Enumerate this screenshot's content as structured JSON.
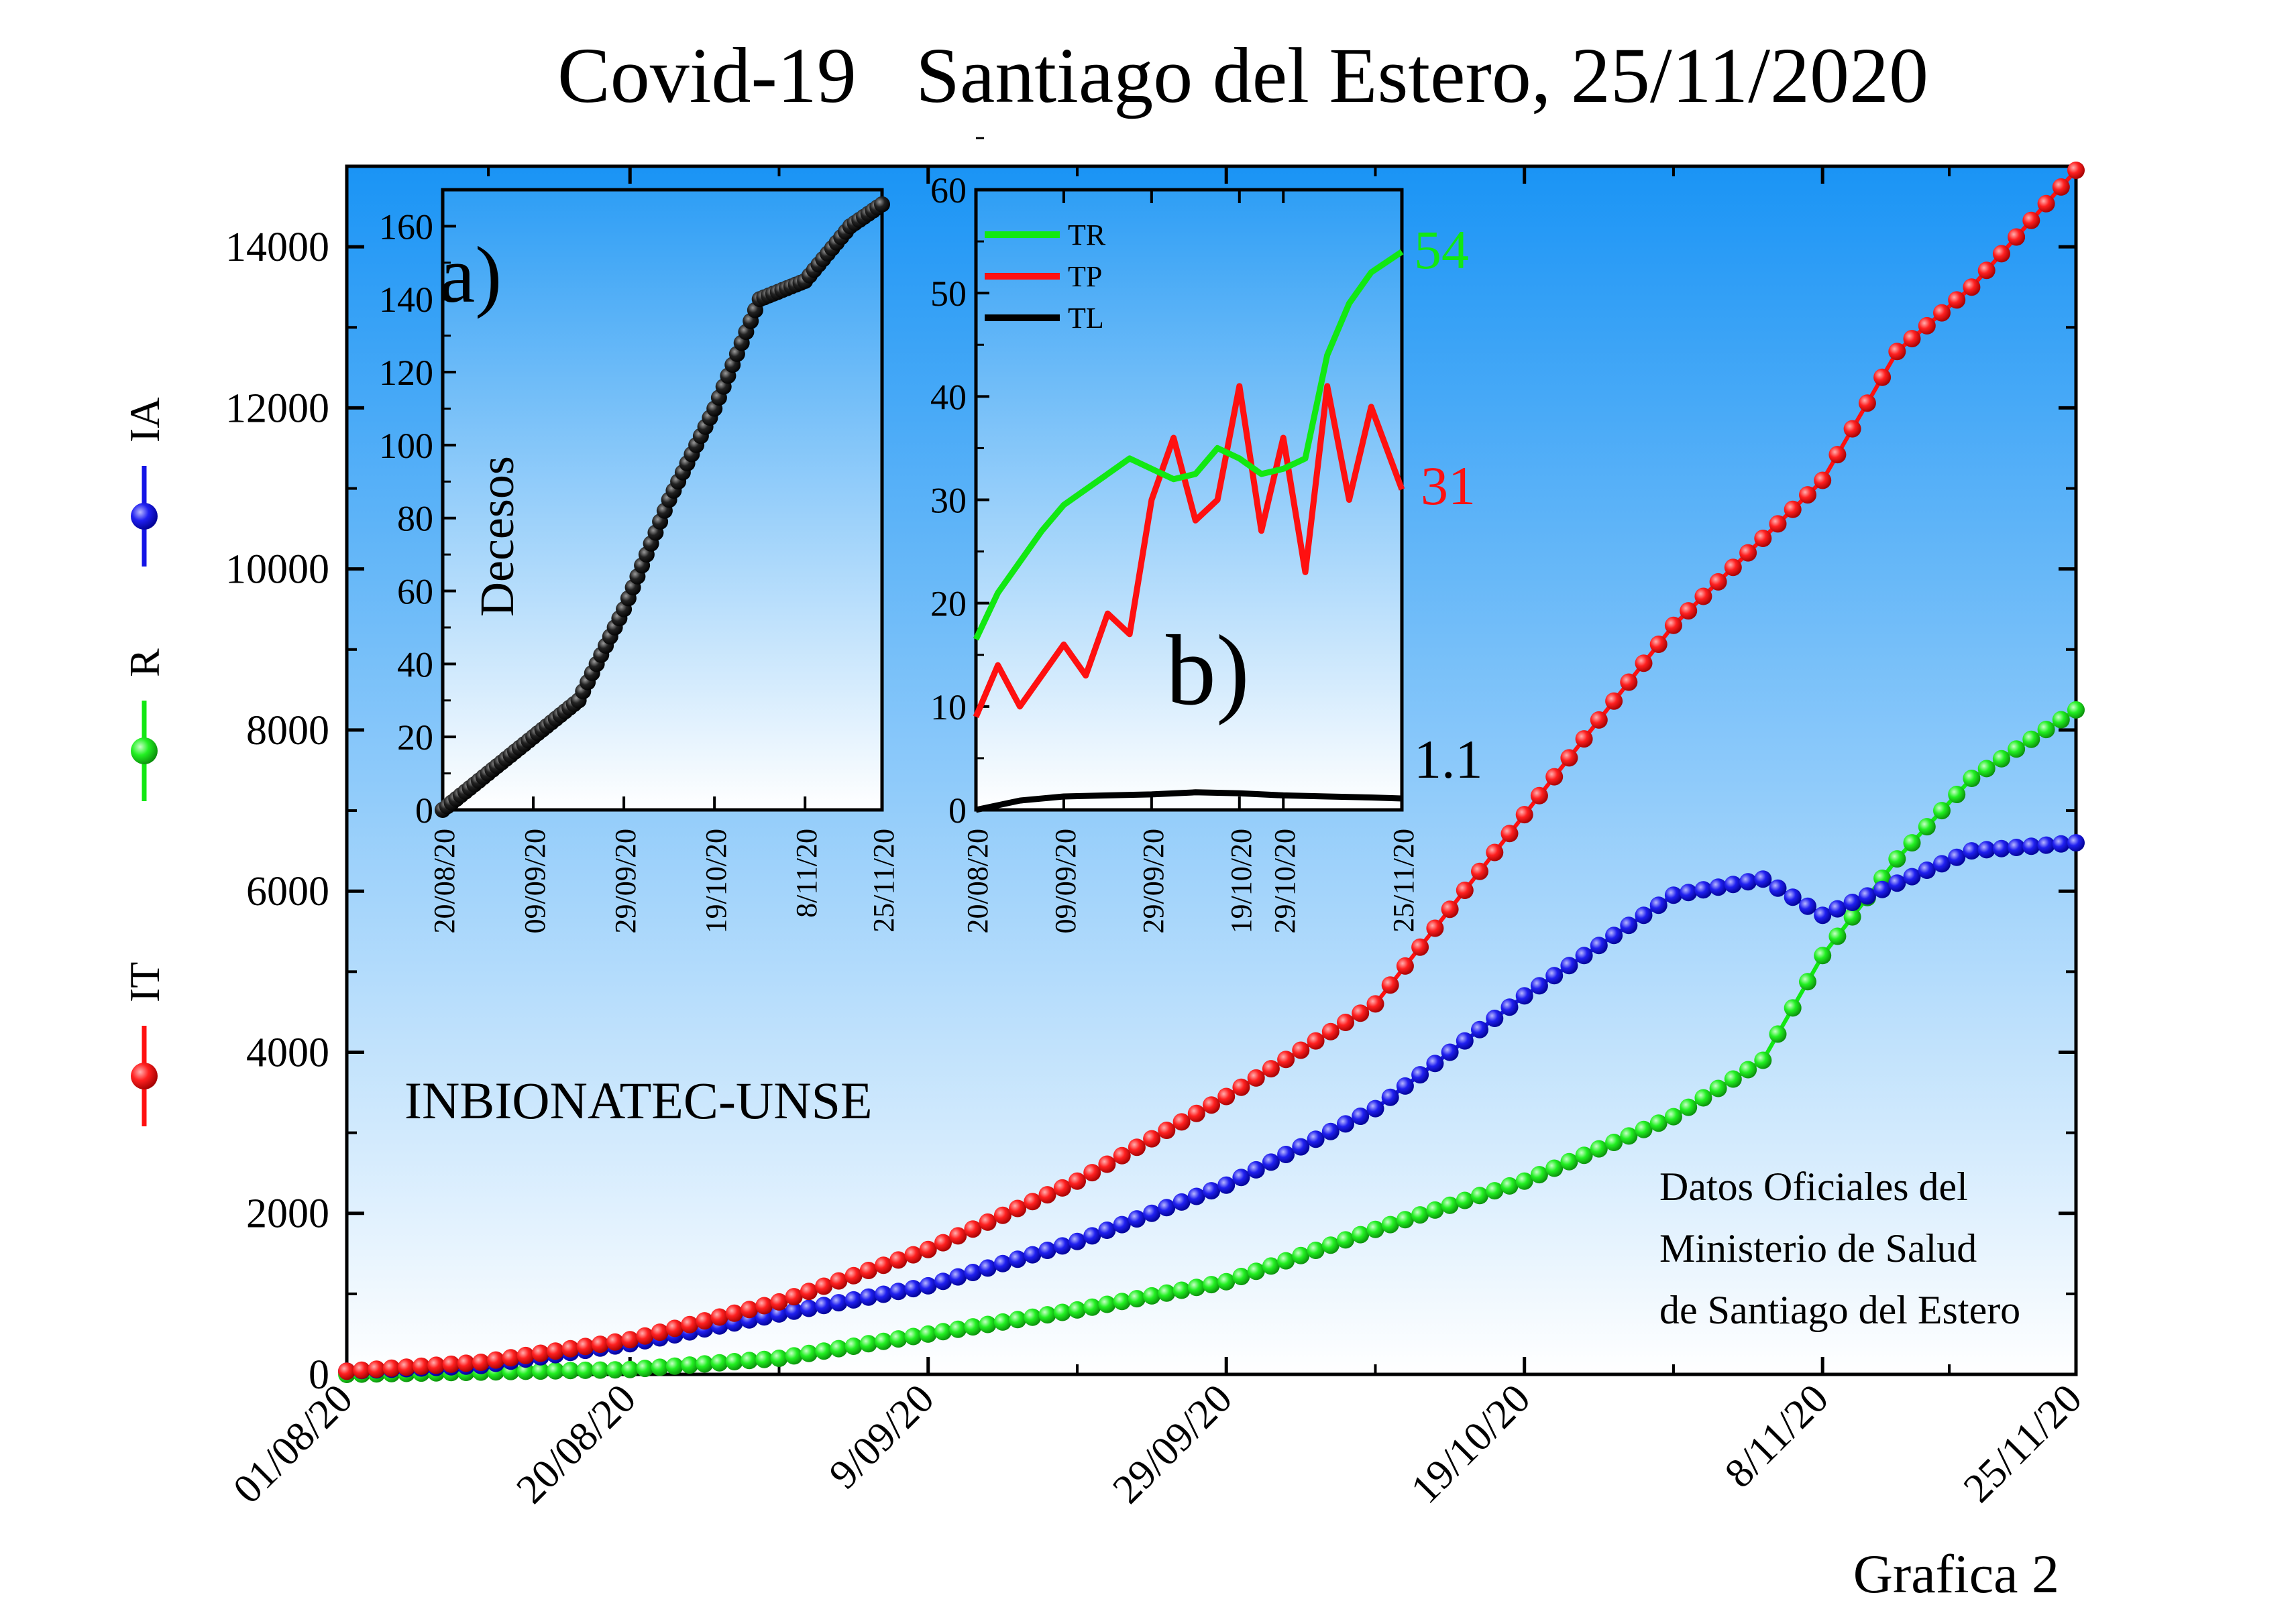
{
  "title": "Covid-19   Santiago del Estero, 25/11/2020",
  "watermark": "INBIONATEC-UNSE",
  "source_note": [
    "Datos Oficiales del",
    "Ministerio de Salud",
    "de Santiago del Estero"
  ],
  "footer": "Grafica 2",
  "colors": {
    "IT": "#ff1010",
    "R": "#12e812",
    "IA": "#1414e6",
    "deaths": "#111111",
    "bg_top": "#1a94f5",
    "bg_bottom": "#ffffff"
  },
  "chart_data": [
    {
      "id": "main",
      "type": "line",
      "x_type": "date",
      "x_range": [
        "2020-08-01",
        "2020-11-25"
      ],
      "x_ticks": [
        "2020-08-01",
        "2020-08-20",
        "2020-09-09",
        "2020-09-29",
        "2020-10-19",
        "2020-11-08",
        "2020-11-25"
      ],
      "x_tick_labels": [
        "01/08/20",
        "20/08/20",
        "9/09/20",
        "29/09/20",
        "19/10/20",
        "8/11/20",
        "25/11/20"
      ],
      "ylim": [
        0,
        15000
      ],
      "y_ticks": [
        0,
        2000,
        4000,
        6000,
        8000,
        10000,
        12000,
        14000
      ],
      "legend": {
        "placement": "left",
        "orientation": "vertical",
        "entries": [
          "IT",
          "R",
          "IA"
        ]
      },
      "series": [
        {
          "name": "IT",
          "x": [
            "2020-08-01",
            "2020-08-10",
            "2020-08-20",
            "2020-08-30",
            "2020-09-09",
            "2020-09-19",
            "2020-09-29",
            "2020-10-09",
            "2020-10-19",
            "2020-10-29",
            "2020-11-08",
            "2020-11-13",
            "2020-11-18",
            "2020-11-25"
          ],
          "y": [
            40,
            150,
            430,
            900,
            1550,
            2400,
            3450,
            4600,
            6950,
            9300,
            11100,
            12700,
            13500,
            14950
          ]
        },
        {
          "name": "R",
          "x": [
            "2020-08-01",
            "2020-08-20",
            "2020-08-30",
            "2020-09-09",
            "2020-09-19",
            "2020-09-29",
            "2020-10-09",
            "2020-10-19",
            "2020-10-29",
            "2020-11-04",
            "2020-11-08",
            "2020-11-13",
            "2020-11-18",
            "2020-11-25"
          ],
          "y": [
            0,
            60,
            200,
            500,
            800,
            1150,
            1800,
            2400,
            3200,
            3900,
            5200,
            6400,
            7400,
            8250
          ]
        },
        {
          "name": "IA",
          "x": [
            "2020-08-01",
            "2020-08-10",
            "2020-08-20",
            "2020-08-30",
            "2020-09-09",
            "2020-09-19",
            "2020-09-29",
            "2020-10-09",
            "2020-10-19",
            "2020-10-29",
            "2020-11-04",
            "2020-11-08",
            "2020-11-13",
            "2020-11-18",
            "2020-11-25"
          ],
          "y": [
            40,
            110,
            380,
            750,
            1100,
            1650,
            2350,
            3300,
            4700,
            5950,
            6150,
            5700,
            6100,
            6500,
            6600
          ]
        }
      ]
    },
    {
      "id": "inset-a",
      "type": "scatter",
      "panel_label": "a)",
      "ylabel": "Decesos",
      "x_type": "date",
      "x_range": [
        "2020-08-20",
        "2020-11-25"
      ],
      "x_ticks": [
        "2020-08-20",
        "2020-09-09",
        "2020-09-29",
        "2020-10-19",
        "2020-11-08",
        "2020-11-25"
      ],
      "x_tick_labels": [
        "20/08/20",
        "09/09/20",
        "29/09/20",
        "19/10/20",
        "8/11/20",
        "25/11/20"
      ],
      "ylim": [
        0,
        170
      ],
      "y_ticks": [
        0,
        20,
        40,
        60,
        80,
        100,
        120,
        140,
        160
      ],
      "series": [
        {
          "name": "",
          "x": [
            "2020-08-20",
            "2020-08-30",
            "2020-09-09",
            "2020-09-19",
            "2020-09-29",
            "2020-10-09",
            "2020-10-19",
            "2020-10-29",
            "2020-11-08",
            "2020-11-18",
            "2020-11-25"
          ],
          "y": [
            0,
            10,
            20,
            30,
            55,
            85,
            110,
            140,
            145,
            160,
            166
          ]
        }
      ]
    },
    {
      "id": "inset-b",
      "type": "line",
      "panel_label": "b)",
      "x_type": "date",
      "x_range": [
        "2020-08-20",
        "2020-11-25"
      ],
      "x_ticks": [
        "2020-08-20",
        "2020-09-09",
        "2020-09-29",
        "2020-10-19",
        "2020-10-29",
        "2020-11-25"
      ],
      "x_tick_labels": [
        "20/08/20",
        "09/09/20",
        "29/09/20",
        "19/10/20",
        "29/10/20",
        "25/11/20"
      ],
      "ylim": [
        0,
        60
      ],
      "y_ticks": [
        0,
        10,
        20,
        30,
        40,
        50,
        60
      ],
      "legend": {
        "placement": "top-left",
        "entries": [
          "TR",
          "TP",
          "TL"
        ]
      },
      "end_labels": {
        "TR": "54",
        "TP": "31",
        "TL": "1.1"
      },
      "series": [
        {
          "name": "TR",
          "x": [
            "2020-08-20",
            "2020-08-25",
            "2020-08-30",
            "2020-09-04",
            "2020-09-09",
            "2020-09-14",
            "2020-09-19",
            "2020-09-24",
            "2020-09-29",
            "2020-10-04",
            "2020-10-09",
            "2020-10-14",
            "2020-10-19",
            "2020-10-24",
            "2020-10-29",
            "2020-11-03",
            "2020-11-08",
            "2020-11-13",
            "2020-11-18",
            "2020-11-25"
          ],
          "y": [
            16.5,
            21,
            24,
            27,
            29.5,
            31,
            32.5,
            34,
            33,
            32,
            32.5,
            35,
            34,
            32.5,
            33,
            34,
            44,
            49,
            52,
            54
          ]
        },
        {
          "name": "TP",
          "x": [
            "2020-08-20",
            "2020-08-25",
            "2020-08-30",
            "2020-09-04",
            "2020-09-09",
            "2020-09-14",
            "2020-09-19",
            "2020-09-24",
            "2020-09-29",
            "2020-10-04",
            "2020-10-09",
            "2020-10-14",
            "2020-10-19",
            "2020-10-24",
            "2020-10-29",
            "2020-11-03",
            "2020-11-08",
            "2020-11-13",
            "2020-11-18",
            "2020-11-25"
          ],
          "y": [
            9,
            14,
            10,
            13,
            16,
            13,
            19,
            17,
            30,
            36,
            28,
            30,
            41,
            27,
            36,
            23,
            41,
            30,
            39,
            31
          ]
        },
        {
          "name": "TL",
          "x": [
            "2020-08-20",
            "2020-08-30",
            "2020-09-09",
            "2020-09-19",
            "2020-09-29",
            "2020-10-09",
            "2020-10-19",
            "2020-10-29",
            "2020-11-08",
            "2020-11-18",
            "2020-11-25"
          ],
          "y": [
            0,
            0.9,
            1.3,
            1.4,
            1.5,
            1.7,
            1.6,
            1.4,
            1.3,
            1.2,
            1.1
          ]
        }
      ]
    }
  ]
}
